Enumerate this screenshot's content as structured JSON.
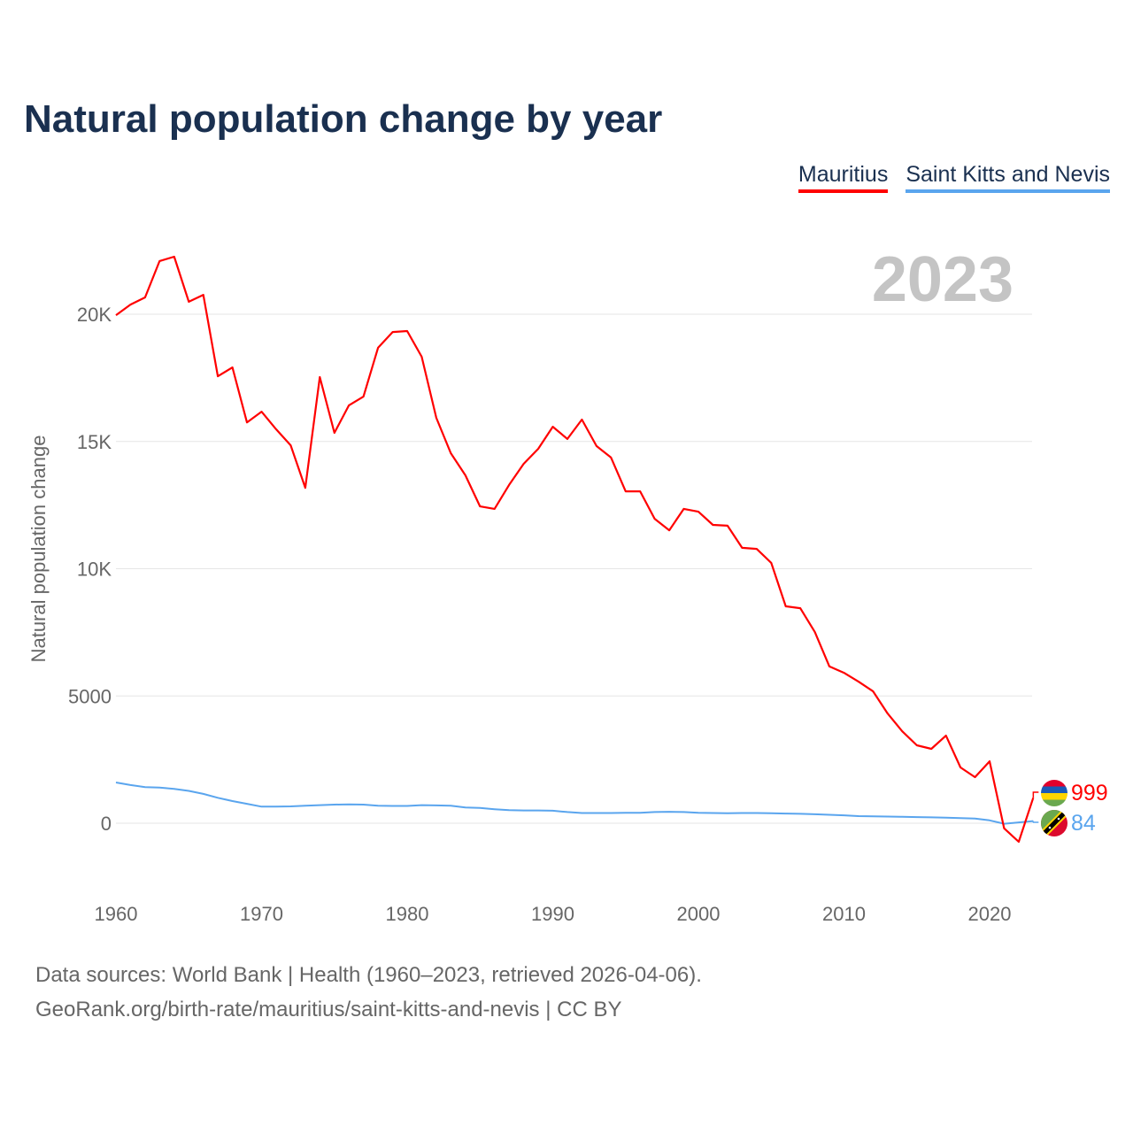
{
  "title": "Natural population change by year",
  "footer": {
    "line1": "Data sources: World Bank | Health (1960–2023, retrieved 2026-04-06).",
    "line2": "GeoRank.org/birth-rate/mauritius/saint-kitts-and-nevis | CC BY"
  },
  "chart_data": {
    "type": "line",
    "title": "Natural population change by year",
    "ylabel": "Natural population change",
    "xlabel": "",
    "year_label": "2023",
    "xlim": [
      1960,
      2023
    ],
    "ylim": [
      -1500,
      23000
    ],
    "x_ticks": [
      1960,
      1970,
      1980,
      1990,
      2000,
      2010,
      2020
    ],
    "y_ticks": [
      {
        "v": 0,
        "label": "0"
      },
      {
        "v": 5000,
        "label": "5000"
      },
      {
        "v": 10000,
        "label": "10K"
      },
      {
        "v": 15000,
        "label": "15K"
      },
      {
        "v": 20000,
        "label": "20K"
      }
    ],
    "grid": true,
    "legend_position": "top-right",
    "x": [
      1960,
      1961,
      1962,
      1963,
      1964,
      1965,
      1966,
      1967,
      1968,
      1969,
      1970,
      1971,
      1972,
      1973,
      1974,
      1975,
      1976,
      1977,
      1978,
      1979,
      1980,
      1981,
      1982,
      1983,
      1984,
      1985,
      1986,
      1987,
      1988,
      1989,
      1990,
      1991,
      1992,
      1993,
      1994,
      1995,
      1996,
      1997,
      1998,
      1999,
      2000,
      2001,
      2002,
      2003,
      2004,
      2005,
      2006,
      2007,
      2008,
      2009,
      2010,
      2011,
      2012,
      2013,
      2014,
      2015,
      2016,
      2017,
      2018,
      2019,
      2020,
      2021,
      2022,
      2023
    ],
    "series": [
      {
        "name": "Mauritius",
        "color": "#ff0000",
        "end_label": "999",
        "values": [
          19960,
          20380,
          20660,
          22090,
          22260,
          20490,
          20760,
          17560,
          17910,
          15750,
          16170,
          15480,
          14850,
          13180,
          17530,
          15340,
          16420,
          16760,
          18680,
          19300,
          19340,
          18330,
          15930,
          14540,
          13670,
          12450,
          12350,
          13290,
          14120,
          14710,
          15580,
          15100,
          15860,
          14820,
          14370,
          13040,
          13040,
          11960,
          11510,
          12350,
          12240,
          11720,
          11690,
          10820,
          10780,
          10230,
          8520,
          8450,
          7510,
          6160,
          5910,
          5560,
          5180,
          4310,
          3610,
          3060,
          2920,
          3440,
          2190,
          1810,
          2430,
          -200,
          -730,
          999
        ]
      },
      {
        "name": "Saint Kitts and Nevis",
        "color": "#5aa5ee",
        "end_label": "84",
        "values": [
          1600,
          1500,
          1420,
          1400,
          1350,
          1270,
          1150,
          1000,
          870,
          760,
          650,
          650,
          660,
          690,
          710,
          730,
          740,
          730,
          690,
          680,
          680,
          710,
          700,
          690,
          620,
          600,
          550,
          510,
          500,
          500,
          490,
          440,
          400,
          400,
          400,
          410,
          410,
          440,
          450,
          440,
          410,
          400,
          390,
          400,
          400,
          390,
          380,
          370,
          350,
          330,
          310,
          280,
          270,
          260,
          250,
          240,
          230,
          220,
          200,
          180,
          110,
          -20,
          30,
          84
        ]
      }
    ]
  }
}
